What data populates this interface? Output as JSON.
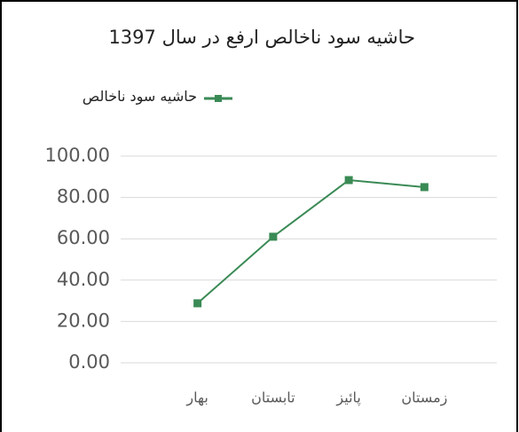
{
  "chart_data": {
    "type": "line",
    "title": "حاشیه سود ناخالص ارفع در سال 1397",
    "categories": [
      "بهار",
      "تابستان",
      "پائیز",
      "زمستان"
    ],
    "series": [
      {
        "name": "حاشیه سود ناخالص",
        "color": "#3a8a55",
        "values": [
          28.8,
          61,
          88.4,
          85
        ]
      }
    ],
    "ylim": [
      0,
      100
    ],
    "yticks": [
      {
        "value": 0,
        "label": "0.00"
      },
      {
        "value": 20,
        "label": "20.00"
      },
      {
        "value": 40,
        "label": "40.00"
      },
      {
        "value": 60,
        "label": "60.00"
      },
      {
        "value": 80,
        "label": "80.00"
      },
      {
        "value": 100,
        "label": "100.00"
      }
    ],
    "grid": true,
    "legend": "top-left"
  }
}
